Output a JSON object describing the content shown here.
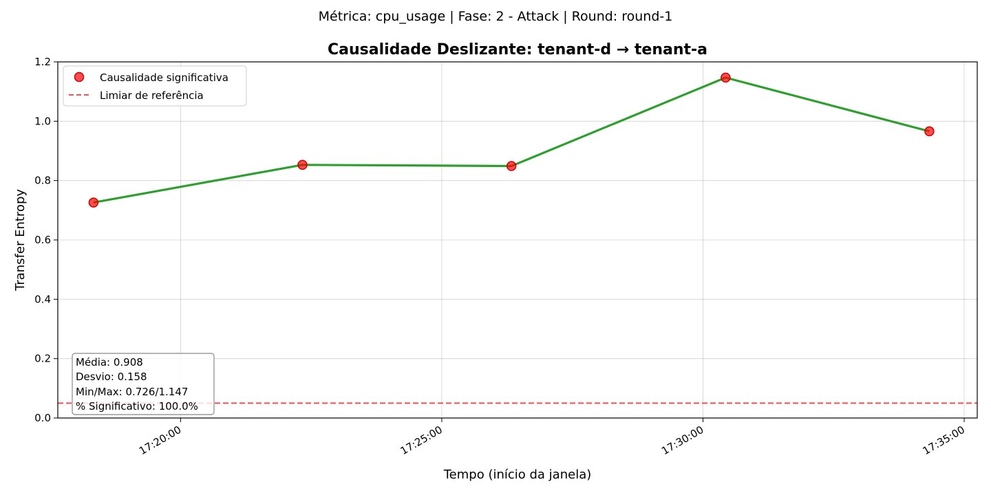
{
  "suptitle": "Métrica: cpu_usage | Fase: 2 - Attack | Round: round-1",
  "chart_data": {
    "type": "line",
    "title": "Causalidade Deslizante: tenant-d → tenant-a",
    "xlabel": "Tempo (início da janela)",
    "ylabel": "Transfer Entropy",
    "x_axis_type": "time",
    "xlim": [
      "17:17:39",
      "17:35:15"
    ],
    "ylim": [
      0,
      1.2
    ],
    "x_ticks": [
      "17:20:00",
      "17:25:00",
      "17:30:00",
      "17:35:00"
    ],
    "y_ticks": [
      "0.0",
      "0.2",
      "0.4",
      "0.6",
      "0.8",
      "1.0",
      "1.2"
    ],
    "grid": true,
    "legend_position": "top-left",
    "series": [
      {
        "x": [
          "17:18:20",
          "17:22:20",
          "17:26:20",
          "17:30:26",
          "17:34:20"
        ],
        "values": [
          0.726,
          0.853,
          0.849,
          1.147,
          0.966
        ],
        "color": "#2ca02c",
        "marker_color": "#ff0000"
      }
    ],
    "legend": [
      {
        "label": "Causalidade significativa",
        "type": "marker",
        "color": "#ff0000"
      },
      {
        "label": "Limiar de referência",
        "type": "dashed-line",
        "color": "#ff0000"
      }
    ],
    "reference_line": {
      "y": 0.05,
      "color": "#ff0000"
    },
    "stats_box": [
      "Média: 0.908",
      "Desvio: 0.158",
      "Min/Max: 0.726/1.147",
      "% Significativo: 100.0%"
    ]
  }
}
